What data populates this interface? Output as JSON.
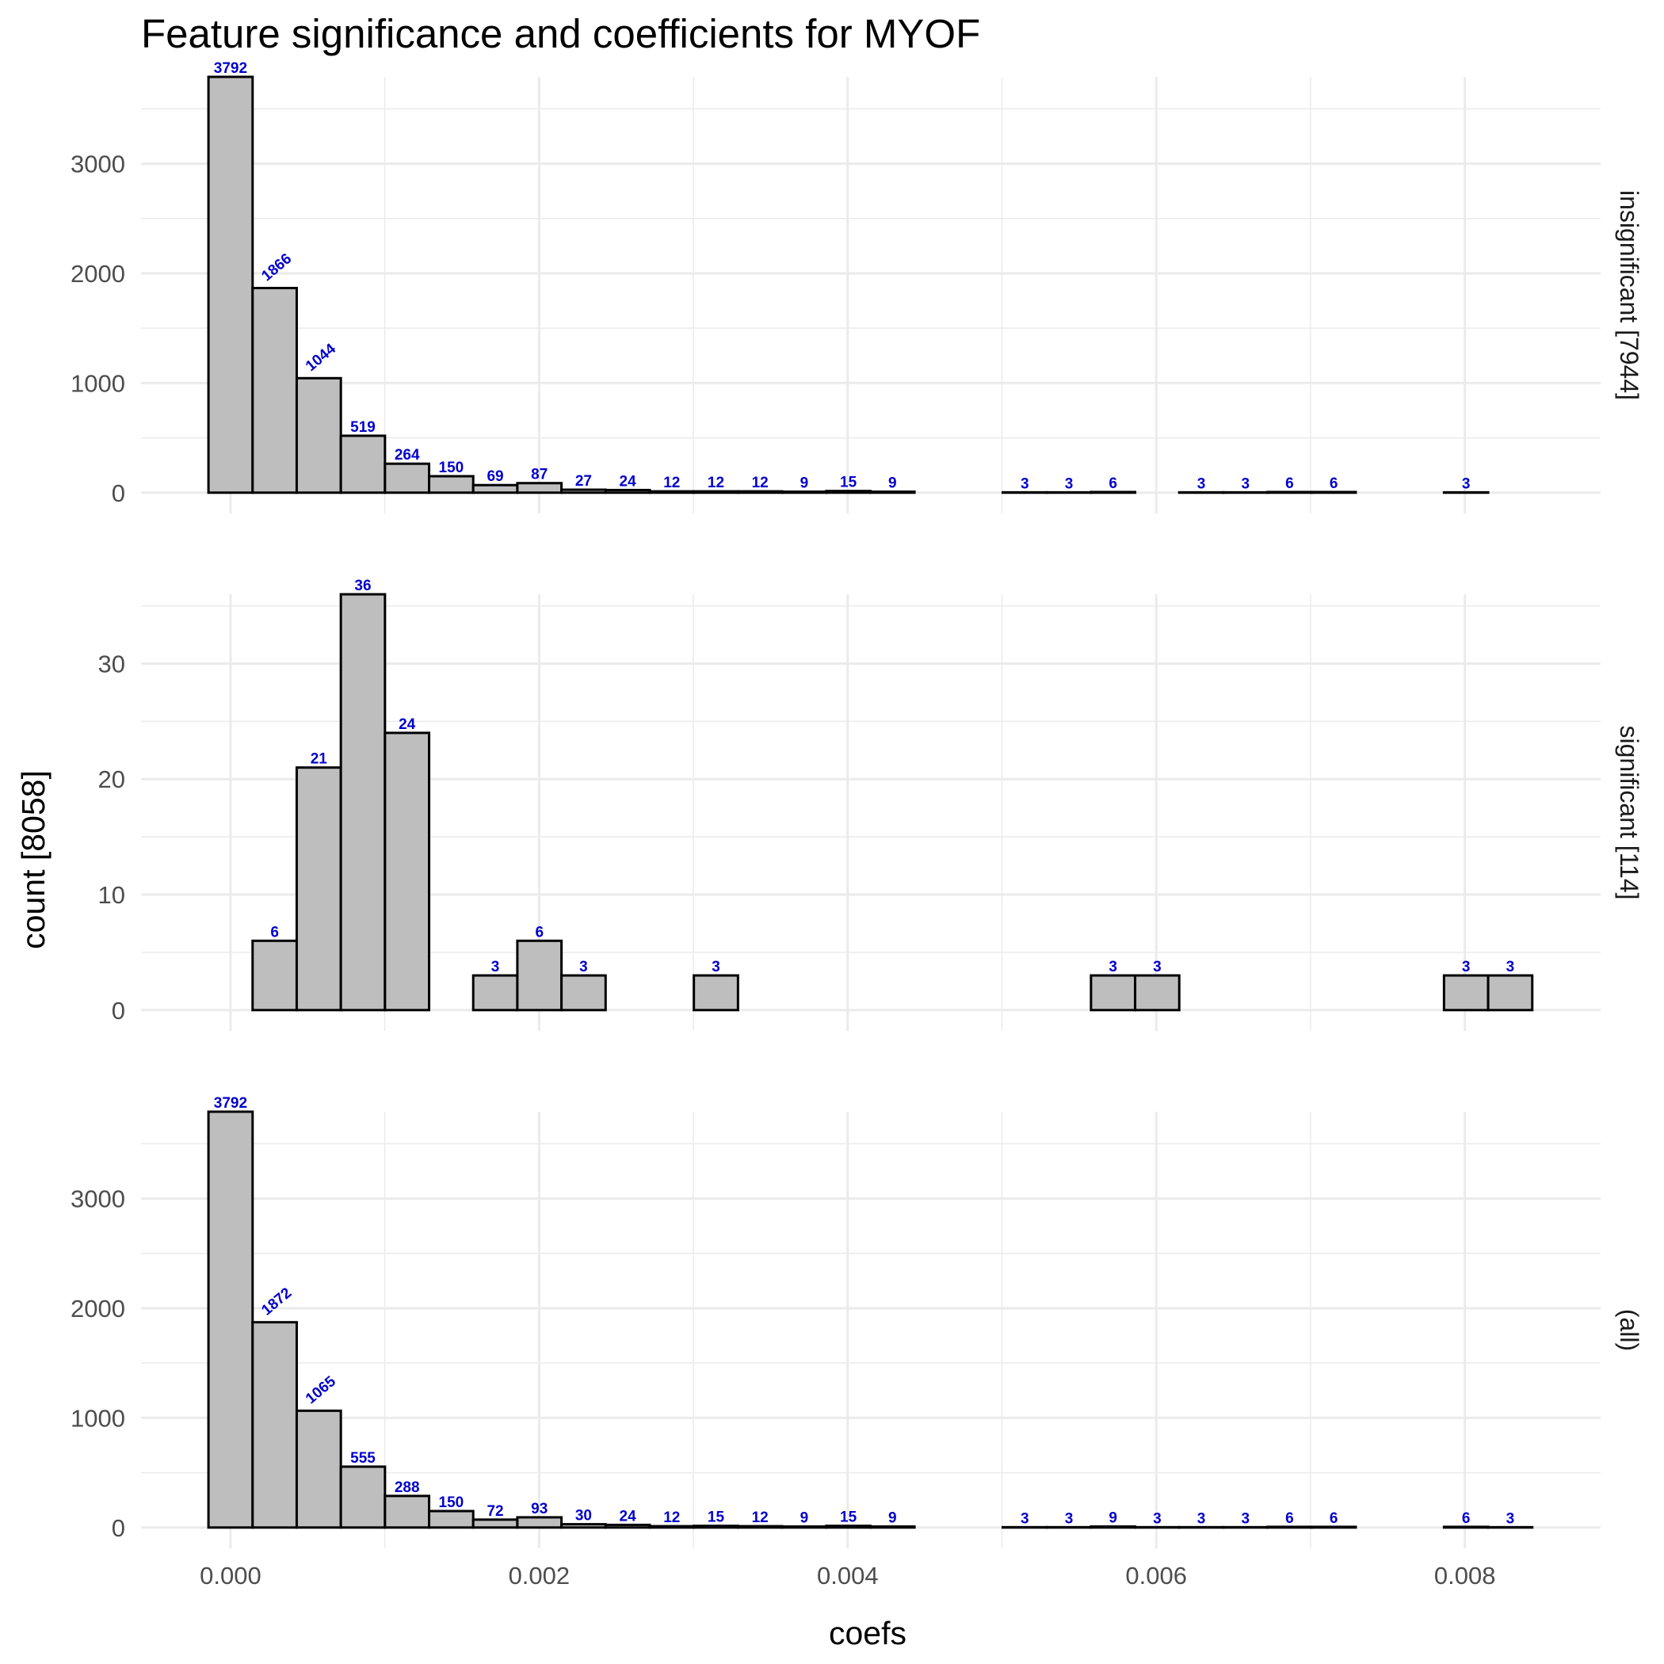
{
  "chart_data": {
    "type": "bar",
    "title": "Feature significance and coefficients for MYOF",
    "xlabel": "coefs",
    "ylabel": "count [8058]",
    "x_ticks": [
      0,
      0.002,
      0.004,
      0.006,
      0.008
    ],
    "x_tick_labels": [
      "0.000",
      "0.002",
      "0.004",
      "0.006",
      "0.008"
    ],
    "xlim": [
      -0.00058,
      0.00888
    ],
    "bin_width": 0.000286,
    "bin_centers": [
      0.0,
      0.000286,
      0.000572,
      0.000858,
      0.001144,
      0.00143,
      0.001716,
      0.002002,
      0.002288,
      0.002574,
      0.00286,
      0.003146,
      0.003432,
      0.003718,
      0.004004,
      0.00429,
      0.004576,
      0.004862,
      0.005148,
      0.005434,
      0.00572,
      0.006006,
      0.006292,
      0.006578,
      0.006864,
      0.00715,
      0.007436,
      0.007722,
      0.008008,
      0.008294
    ],
    "grid": true,
    "panels": [
      {
        "label": "insignificant [7944]",
        "ylim": [
          0,
          3792
        ],
        "y_ticks": [
          0,
          1000,
          2000,
          3000
        ],
        "y_tick_labels": [
          "0",
          "1000",
          "2000",
          "3000"
        ],
        "values": [
          3792,
          1866,
          1044,
          519,
          264,
          150,
          69,
          87,
          27,
          24,
          12,
          12,
          12,
          9,
          15,
          9,
          0,
          0,
          3,
          3,
          6,
          0,
          3,
          3,
          6,
          6,
          0,
          0,
          3,
          0
        ],
        "labels": [
          "3792",
          "1866",
          "1044",
          "519",
          "264",
          "150",
          "69",
          "87",
          "27",
          "24",
          "12",
          "12",
          "12",
          "9",
          "15",
          "9",
          "",
          "",
          "3",
          "3",
          "6",
          "",
          "3",
          "3",
          "6",
          "6",
          "",
          "",
          "3",
          ""
        ]
      },
      {
        "label": "significant [114]",
        "ylim": [
          0,
          36
        ],
        "y_ticks": [
          0,
          10,
          20,
          30
        ],
        "y_tick_labels": [
          "0",
          "10",
          "20",
          "30"
        ],
        "values": [
          0,
          6,
          21,
          36,
          24,
          0,
          3,
          6,
          3,
          0,
          0,
          3,
          0,
          0,
          0,
          0,
          0,
          0,
          0,
          0,
          3,
          3,
          0,
          0,
          0,
          0,
          0,
          0,
          3,
          3
        ],
        "labels": [
          "",
          "6",
          "21",
          "36",
          "24",
          "",
          "3",
          "6",
          "3",
          "",
          "",
          "3",
          "",
          "",
          "",
          "",
          "",
          "",
          "",
          "",
          "3",
          "3",
          "",
          "",
          "",
          "",
          "",
          "",
          "3",
          "3"
        ]
      },
      {
        "label": "(all)",
        "ylim": [
          0,
          3792
        ],
        "y_ticks": [
          0,
          1000,
          2000,
          3000
        ],
        "y_tick_labels": [
          "0",
          "1000",
          "2000",
          "3000"
        ],
        "values": [
          3792,
          1872,
          1065,
          555,
          288,
          150,
          72,
          93,
          30,
          24,
          12,
          15,
          12,
          9,
          15,
          9,
          0,
          0,
          3,
          3,
          9,
          3,
          3,
          3,
          6,
          6,
          0,
          0,
          6,
          3
        ],
        "labels": [
          "3792",
          "1872",
          "1065",
          "555",
          "288",
          "150",
          "72",
          "93",
          "30",
          "24",
          "12",
          "15",
          "12",
          "9",
          "15",
          "9",
          "",
          "",
          "3",
          "3",
          "9",
          "3",
          "3",
          "3",
          "6",
          "6",
          "",
          "",
          "6",
          "3"
        ]
      }
    ],
    "colors": {
      "bar_fill": "#BEBEBE",
      "bar_stroke": "#000000",
      "label": "#0000CC",
      "grid": "#EBEBEB",
      "tick": "#4D4D4D"
    }
  }
}
